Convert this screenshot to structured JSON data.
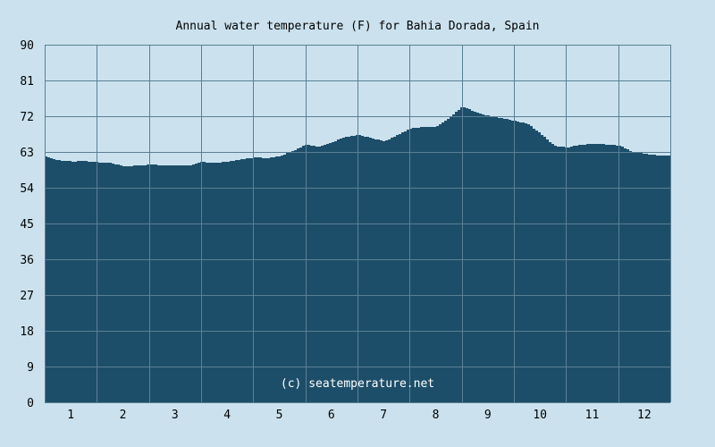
{
  "chart_data": {
    "type": "area",
    "title": "Annual water temperature (F) for Bahia Dorada, Spain",
    "xlabel": "",
    "ylabel": "",
    "x_ticks": [
      "1",
      "2",
      "3",
      "4",
      "5",
      "6",
      "7",
      "8",
      "9",
      "10",
      "11",
      "12"
    ],
    "y_ticks": [
      "0",
      "9",
      "18",
      "27",
      "36",
      "45",
      "54",
      "63",
      "72",
      "81",
      "90"
    ],
    "ylim": [
      0,
      90
    ],
    "xlim": [
      0.5,
      12.5
    ],
    "grid": true,
    "watermark": "(c) seatemperature.net",
    "colors": {
      "background": "#cbe2ee",
      "fill": "#1d4e69",
      "grid": "#5a7f95"
    },
    "series": [
      {
        "x": [
          0.5,
          0.75,
          1.0,
          1.25,
          1.5,
          1.75,
          2.0,
          2.25,
          2.5,
          2.75,
          3.0,
          3.25,
          3.5,
          3.75,
          4.0,
          4.25,
          4.5,
          4.75,
          5.0,
          5.25,
          5.5,
          5.75,
          6.0,
          6.25,
          6.5,
          6.75,
          7.0,
          7.25,
          7.5,
          7.75,
          8.0,
          8.25,
          8.5,
          8.75,
          9.0,
          9.25,
          9.5,
          9.75,
          10.0,
          10.25,
          10.5,
          10.75,
          11.0,
          11.25,
          11.5,
          11.75,
          12.0,
          12.25,
          12.5
        ],
        "values": [
          61.8,
          60.9,
          60.6,
          60.7,
          60.4,
          60.3,
          59.3,
          59.6,
          59.8,
          59.7,
          59.7,
          59.6,
          60.5,
          60.2,
          60.6,
          61.2,
          61.6,
          61.5,
          62.0,
          63.3,
          64.9,
          64.3,
          65.5,
          66.8,
          67.3,
          66.5,
          65.6,
          67.3,
          69.0,
          69.3,
          69.4,
          71.7,
          74.5,
          72.9,
          72.1,
          71.5,
          70.8,
          70.1,
          67.5,
          64.6,
          64.1,
          64.8,
          65.1,
          64.9,
          64.6,
          63.1,
          62.5,
          62.1,
          62.0
        ]
      }
    ]
  }
}
